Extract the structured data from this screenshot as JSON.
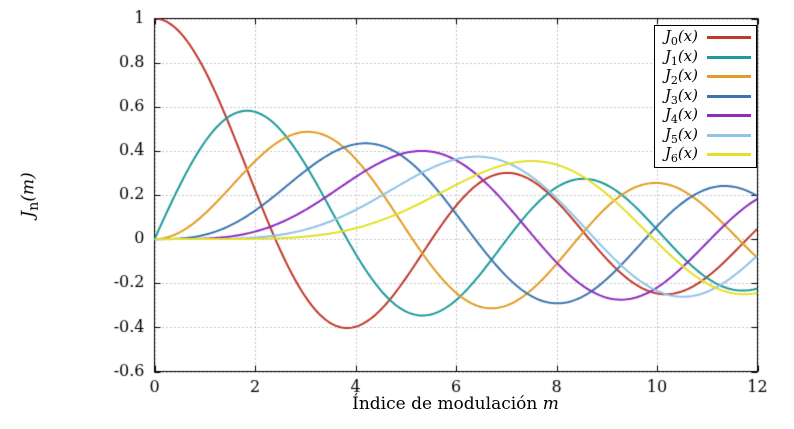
{
  "chart_data": {
    "type": "line",
    "title": "",
    "xlabel": {
      "text": "Índice de modulación ",
      "var": "m"
    },
    "ylabel": {
      "base": "J",
      "sub": "n",
      "args": "(m)"
    },
    "xlim": [
      0,
      12
    ],
    "ylim": [
      -0.6,
      1
    ],
    "xticks": [
      0,
      2,
      4,
      6,
      8,
      10,
      12
    ],
    "yticks": [
      1,
      0.8,
      0.6,
      0.4,
      0.2,
      0,
      -0.2,
      -0.4,
      -0.6
    ],
    "grid": "dotted",
    "grid_color": "#8c8c8c",
    "axis_color": "#000000",
    "legend_position": "top-right-inside",
    "x_samples": {
      "start": 0,
      "end": 12,
      "step": 0.04
    },
    "series_type": "bessel_first_kind",
    "series": [
      {
        "name": "J_0(x)",
        "bessel_order": 0,
        "color": "#c0392b"
      },
      {
        "name": "J_1(x)",
        "bessel_order": 1,
        "color": "#1c9b98"
      },
      {
        "name": "J_2(x)",
        "bessel_order": 2,
        "color": "#e09c24"
      },
      {
        "name": "J_3(x)",
        "bessel_order": 3,
        "color": "#3b75af"
      },
      {
        "name": "J_4(x)",
        "bessel_order": 4,
        "color": "#8e2cbe"
      },
      {
        "name": "J_5(x)",
        "bessel_order": 5,
        "color": "#8fc4e6"
      },
      {
        "name": "J_6(x)",
        "bessel_order": 6,
        "color": "#e3e029"
      }
    ]
  }
}
